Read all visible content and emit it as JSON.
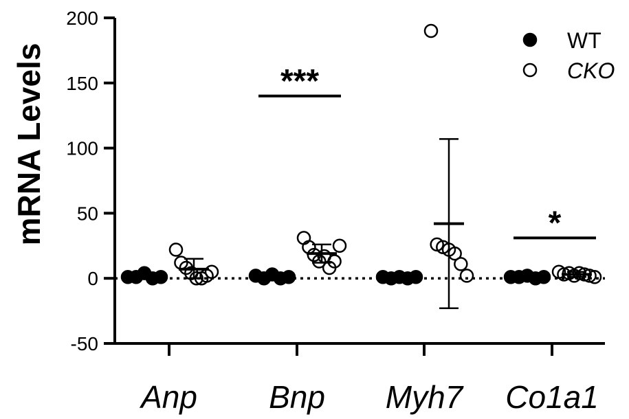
{
  "chart_data": {
    "type": "scatter",
    "title": "",
    "xlabel": "",
    "ylabel": "mRNA Levels",
    "ylim": [
      -50,
      200
    ],
    "yticks": [
      -50,
      0,
      50,
      100,
      150,
      200
    ],
    "baseline": 0,
    "grid": false,
    "legend_position": "top-right",
    "categories": [
      "Anp",
      "Bnp",
      "Myh7",
      "Co1a1"
    ],
    "series": [
      {
        "name": "WT",
        "marker": "filled-circle",
        "color": "#000000",
        "points": [
          [
            1,
            1,
            4,
            0,
            1
          ],
          [
            2,
            0,
            3,
            0,
            1
          ],
          [
            1,
            0,
            1,
            0,
            1
          ],
          [
            1,
            1,
            2,
            0,
            1
          ]
        ],
        "mean": [
          1,
          1,
          1,
          1
        ],
        "error_low": [
          0,
          0,
          0,
          0
        ],
        "error_high": [
          3,
          2,
          1,
          2
        ]
      },
      {
        "name": "CKO",
        "marker": "open-circle",
        "color": "#000000",
        "points": [
          [
            22,
            12,
            8,
            4,
            0,
            0,
            2,
            5
          ],
          [
            31,
            24,
            18,
            13,
            17,
            8,
            13,
            25
          ],
          [
            190,
            26,
            24,
            22,
            19,
            11,
            2
          ],
          [
            5,
            3,
            4,
            2,
            4,
            3,
            2,
            1
          ]
        ],
        "mean": [
          7,
          19,
          42,
          3
        ],
        "error_low": [
          0,
          12,
          -23,
          1
        ],
        "error_high": [
          15,
          26,
          107,
          5
        ]
      }
    ],
    "annotations": [
      {
        "category": "Bnp",
        "text": "***",
        "y": 140
      },
      {
        "category": "Co1a1",
        "text": "*",
        "y": 31
      }
    ]
  }
}
